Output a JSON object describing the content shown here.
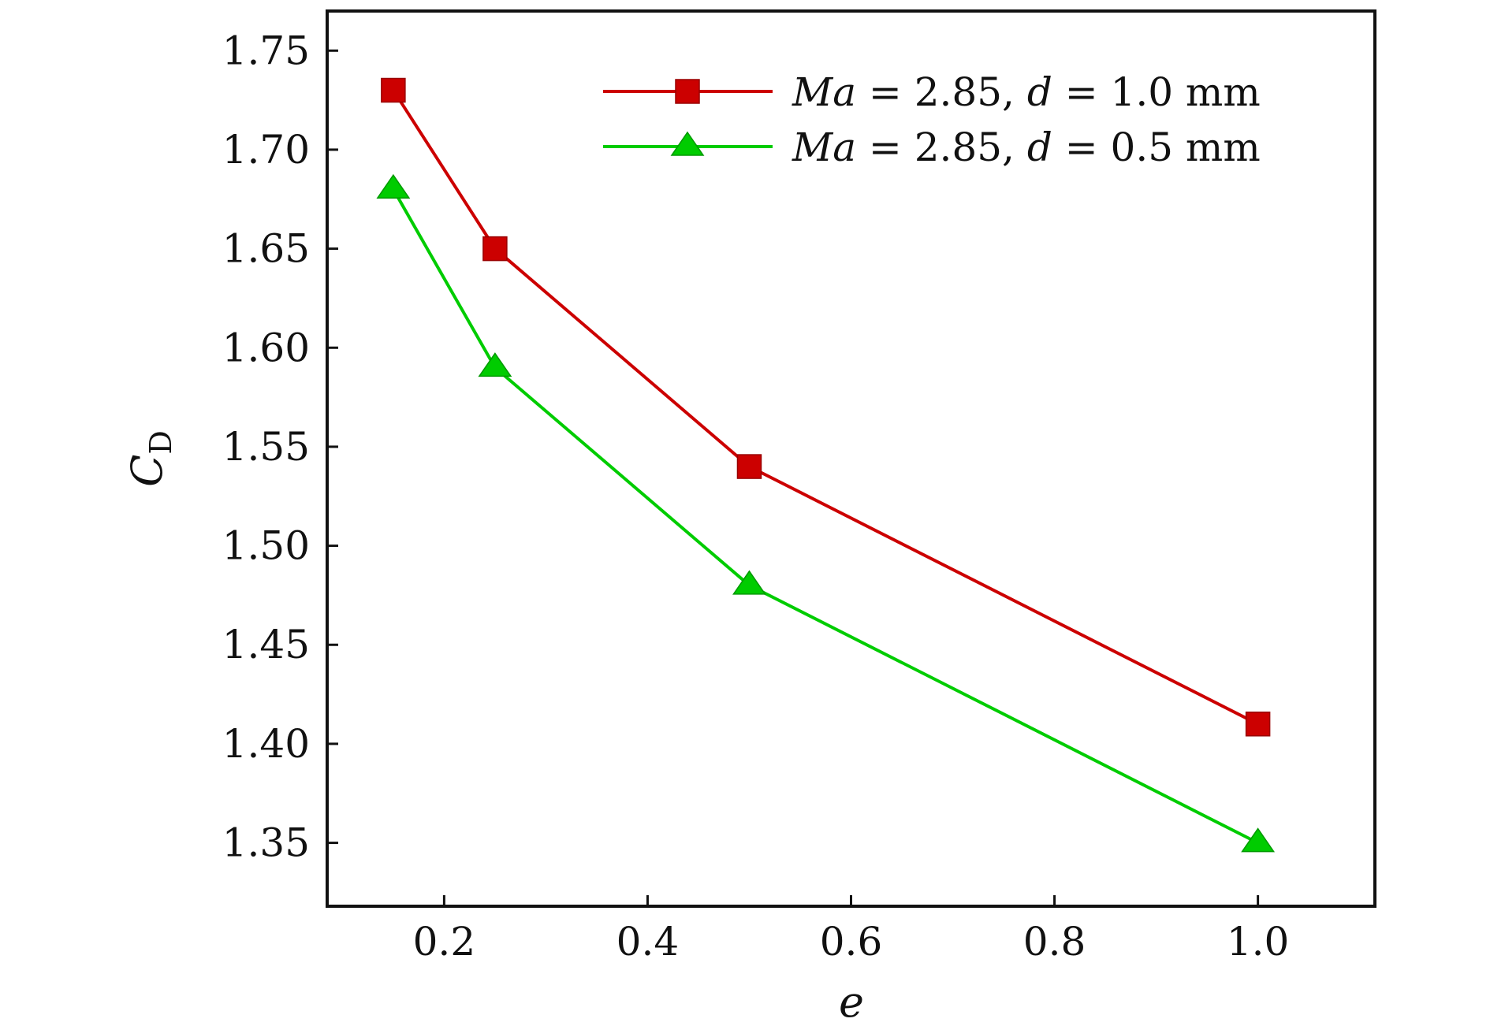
{
  "chart_data": {
    "type": "line",
    "title": "",
    "xlabel": "e",
    "ylabel": {
      "main": "C",
      "subscript": "D"
    },
    "xlim": [
      0.085,
      1.115
    ],
    "ylim": [
      1.318,
      1.77
    ],
    "xticks": [
      0.2,
      0.4,
      0.6,
      0.8,
      1.0
    ],
    "xtick_labels": [
      "0.2",
      "0.4",
      "0.6",
      "0.8",
      "1.0"
    ],
    "yticks": [
      1.35,
      1.4,
      1.45,
      1.5,
      1.55,
      1.6,
      1.65,
      1.7,
      1.75
    ],
    "ytick_labels": [
      "1.35",
      "1.40",
      "1.45",
      "1.50",
      "1.55",
      "1.60",
      "1.65",
      "1.70",
      "1.75"
    ],
    "grid": false,
    "legend_position": "top-right",
    "series": [
      {
        "name": "Ma = 2.85, d = 1.0 mm",
        "label_parts": {
          "var1": "Ma",
          "eq1": " = 2.85, ",
          "var2": "d",
          "eq2": " = 1.0 mm"
        },
        "color": "#cc0000",
        "marker": "square",
        "x": [
          0.15,
          0.25,
          0.5,
          1.0
        ],
        "y": [
          1.73,
          1.65,
          1.54,
          1.41
        ]
      },
      {
        "name": "Ma = 2.85, d = 0.5 mm",
        "label_parts": {
          "var1": "Ma",
          "eq1": " = 2.85, ",
          "var2": "d",
          "eq2": " = 0.5 mm"
        },
        "color": "#00cc00",
        "marker": "triangle",
        "x": [
          0.15,
          0.25,
          0.5,
          1.0
        ],
        "y": [
          1.68,
          1.59,
          1.48,
          1.35
        ]
      }
    ]
  }
}
